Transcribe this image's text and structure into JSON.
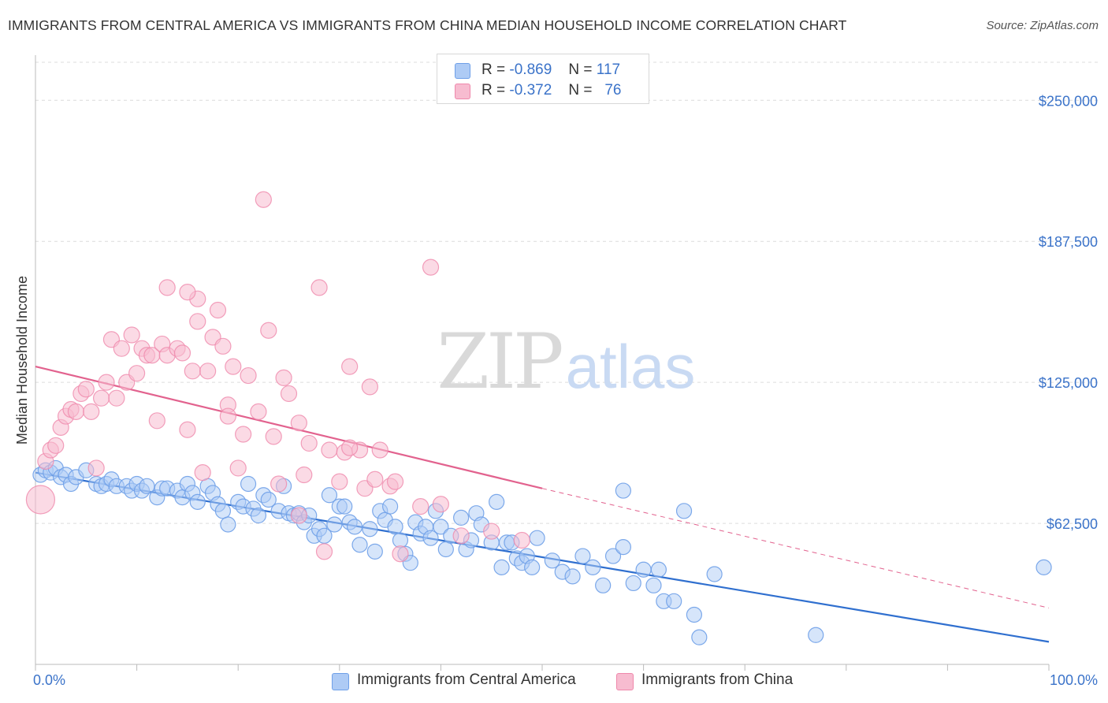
{
  "header": {
    "title": "IMMIGRANTS FROM CENTRAL AMERICA VS IMMIGRANTS FROM CHINA MEDIAN HOUSEHOLD INCOME CORRELATION CHART",
    "source": "Source: ZipAtlas.com"
  },
  "watermark": {
    "zip": "ZIP",
    "atlas": "atlas"
  },
  "legend": {
    "r_label": "R =",
    "n_label": "N =",
    "rows": [
      {
        "r": "-0.869",
        "n": "117",
        "color": "#aecbf5"
      },
      {
        "r": "-0.372",
        "n": "76",
        "color": "#f7bcd0"
      }
    ]
  },
  "chart_data": {
    "type": "scatter",
    "title": "IMMIGRANTS FROM CENTRAL AMERICA VS IMMIGRANTS FROM CHINA MEDIAN HOUSEHOLD INCOME CORRELATION CHART",
    "xlabel": "",
    "ylabel": "Median Household Income",
    "xlim": [
      0,
      100
    ],
    "ylim": [
      0,
      270000
    ],
    "x_tick_labels": [
      "0.0%",
      "100.0%"
    ],
    "y_ticks": [
      62500,
      125000,
      187500,
      250000
    ],
    "y_tick_labels": [
      "$62,500",
      "$125,000",
      "$187,500",
      "$250,000"
    ],
    "grid": true,
    "legend_position": "top-center",
    "series": [
      {
        "name": "Immigrants from Central America",
        "color": "#6fa0e8",
        "fill": "#aecbf5",
        "trend": {
          "x": [
            0,
            100
          ],
          "y": [
            85000,
            10000
          ],
          "color": "#2f6fcf"
        },
        "points": [
          [
            0.5,
            84000
          ],
          [
            1,
            86000
          ],
          [
            1.5,
            85000
          ],
          [
            2,
            87000
          ],
          [
            2.5,
            83000
          ],
          [
            3,
            84000
          ],
          [
            3.5,
            80000
          ],
          [
            4,
            83000
          ],
          [
            5,
            86000
          ],
          [
            6,
            80000
          ],
          [
            6.5,
            79000
          ],
          [
            7,
            80000
          ],
          [
            7.5,
            82000
          ],
          [
            8,
            79000
          ],
          [
            9,
            79000
          ],
          [
            9.5,
            77000
          ],
          [
            10,
            80000
          ],
          [
            10.5,
            77000
          ],
          [
            11,
            79000
          ],
          [
            12,
            74000
          ],
          [
            12.5,
            78000
          ],
          [
            13,
            78000
          ],
          [
            14,
            77000
          ],
          [
            14.5,
            74000
          ],
          [
            15,
            80000
          ],
          [
            15.5,
            76000
          ],
          [
            16,
            72000
          ],
          [
            17,
            79000
          ],
          [
            17.5,
            76000
          ],
          [
            18,
            71000
          ],
          [
            18.5,
            68000
          ],
          [
            19,
            62000
          ],
          [
            20,
            72000
          ],
          [
            20.5,
            70000
          ],
          [
            21,
            80000
          ],
          [
            21.5,
            69000
          ],
          [
            22,
            66000
          ],
          [
            22.5,
            75000
          ],
          [
            23,
            73000
          ],
          [
            24,
            68000
          ],
          [
            24.5,
            79000
          ],
          [
            25,
            67000
          ],
          [
            25.5,
            66000
          ],
          [
            26,
            67000
          ],
          [
            26.5,
            63000
          ],
          [
            27,
            66000
          ],
          [
            27.5,
            57000
          ],
          [
            28,
            60000
          ],
          [
            28.5,
            57000
          ],
          [
            29,
            75000
          ],
          [
            29.5,
            62000
          ],
          [
            30,
            70000
          ],
          [
            30.5,
            70000
          ],
          [
            31,
            63000
          ],
          [
            31.5,
            61000
          ],
          [
            32,
            53000
          ],
          [
            33,
            60000
          ],
          [
            33.5,
            50000
          ],
          [
            34,
            68000
          ],
          [
            34.5,
            64000
          ],
          [
            35,
            70000
          ],
          [
            35.5,
            61000
          ],
          [
            36,
            55000
          ],
          [
            36.5,
            49000
          ],
          [
            37,
            45000
          ],
          [
            37.5,
            63000
          ],
          [
            38,
            58000
          ],
          [
            38.5,
            61000
          ],
          [
            39,
            56000
          ],
          [
            39.5,
            68000
          ],
          [
            40,
            61000
          ],
          [
            40.5,
            51000
          ],
          [
            41,
            57000
          ],
          [
            42,
            65000
          ],
          [
            42.5,
            51000
          ],
          [
            43,
            55000
          ],
          [
            43.5,
            67000
          ],
          [
            44,
            62000
          ],
          [
            45,
            54000
          ],
          [
            45.5,
            72000
          ],
          [
            46,
            43000
          ],
          [
            46.5,
            54000
          ],
          [
            47,
            54000
          ],
          [
            47.5,
            47000
          ],
          [
            48,
            45000
          ],
          [
            48.5,
            48000
          ],
          [
            49,
            43000
          ],
          [
            49.5,
            56000
          ],
          [
            51,
            46000
          ],
          [
            52,
            41000
          ],
          [
            53,
            39000
          ],
          [
            54,
            48000
          ],
          [
            55,
            43000
          ],
          [
            56,
            35000
          ],
          [
            57,
            48000
          ],
          [
            58,
            52000
          ],
          [
            59,
            36000
          ],
          [
            60,
            42000
          ],
          [
            61,
            35000
          ],
          [
            61.5,
            42000
          ],
          [
            62,
            28000
          ],
          [
            63,
            28000
          ],
          [
            64,
            68000
          ],
          [
            65,
            22000
          ],
          [
            65.5,
            12000
          ],
          [
            67,
            40000
          ],
          [
            58,
            77000
          ],
          [
            77,
            13000
          ],
          [
            99.5,
            43000
          ]
        ]
      },
      {
        "name": "Immigrants from China",
        "color": "#ef88ab",
        "fill": "#f7bcd0",
        "trend": {
          "x": [
            0,
            50
          ],
          "y": [
            132000,
            78000
          ],
          "color": "#e2628e",
          "dashed_extension": {
            "x": [
              50,
              100
            ],
            "y": [
              78000,
              25000
            ]
          }
        },
        "points": [
          [
            0.5,
            73000
          ],
          [
            1,
            90000
          ],
          [
            1.5,
            95000
          ],
          [
            2,
            97000
          ],
          [
            2.5,
            105000
          ],
          [
            3,
            110000
          ],
          [
            3.5,
            113000
          ],
          [
            4,
            112000
          ],
          [
            4.5,
            120000
          ],
          [
            5,
            122000
          ],
          [
            5.5,
            112000
          ],
          [
            6,
            87000
          ],
          [
            6.5,
            118000
          ],
          [
            7,
            125000
          ],
          [
            7.5,
            144000
          ],
          [
            8,
            118000
          ],
          [
            8.5,
            140000
          ],
          [
            9,
            125000
          ],
          [
            9.5,
            146000
          ],
          [
            10,
            129000
          ],
          [
            10.5,
            140000
          ],
          [
            11,
            137000
          ],
          [
            11.5,
            137000
          ],
          [
            12,
            108000
          ],
          [
            12.5,
            142000
          ],
          [
            13,
            137000
          ],
          [
            14,
            140000
          ],
          [
            14.5,
            138000
          ],
          [
            15,
            104000
          ],
          [
            15.5,
            130000
          ],
          [
            16,
            152000
          ],
          [
            16.5,
            85000
          ],
          [
            17,
            130000
          ],
          [
            17.5,
            145000
          ],
          [
            18,
            157000
          ],
          [
            18.5,
            141000
          ],
          [
            19,
            115000
          ],
          [
            19.5,
            132000
          ],
          [
            20,
            87000
          ],
          [
            20.5,
            102000
          ],
          [
            21,
            128000
          ],
          [
            22,
            112000
          ],
          [
            22.5,
            206000
          ],
          [
            23,
            148000
          ],
          [
            23.5,
            101000
          ],
          [
            24,
            80000
          ],
          [
            24.5,
            127000
          ],
          [
            25,
            120000
          ],
          [
            26,
            107000
          ],
          [
            26.5,
            84000
          ],
          [
            27,
            98000
          ],
          [
            28,
            167000
          ],
          [
            28.5,
            50000
          ],
          [
            29,
            95000
          ],
          [
            30,
            81000
          ],
          [
            30.5,
            94000
          ],
          [
            31,
            132000
          ],
          [
            32,
            95000
          ],
          [
            32.5,
            78000
          ],
          [
            33,
            123000
          ],
          [
            33.5,
            82000
          ],
          [
            34,
            95000
          ],
          [
            35,
            79000
          ],
          [
            35.5,
            81000
          ],
          [
            36,
            49000
          ],
          [
            38,
            70000
          ],
          [
            39,
            176000
          ],
          [
            40,
            71000
          ],
          [
            42,
            57000
          ],
          [
            45,
            59000
          ],
          [
            48,
            55000
          ],
          [
            16,
            162000
          ],
          [
            15,
            165000
          ],
          [
            31,
            96000
          ],
          [
            19,
            110000
          ],
          [
            26,
            66000
          ],
          [
            13,
            167000
          ]
        ]
      }
    ]
  },
  "bottom_legend": {
    "items": [
      {
        "label": "Immigrants from Central America",
        "color": "#aecbf5"
      },
      {
        "label": "Immigrants from China",
        "color": "#f7bcd0"
      }
    ]
  }
}
